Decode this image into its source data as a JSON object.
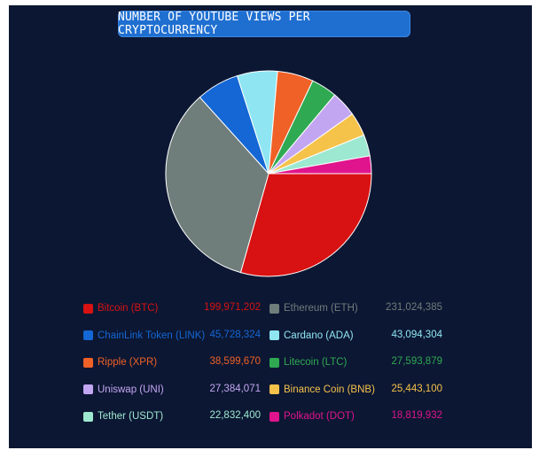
{
  "chart_data": {
    "type": "pie",
    "title": "NUMBER OF YOUTUBE VIEWS PER CRYPTOCURRENCY",
    "slices": [
      {
        "label": "Bitcoin (BTC)",
        "value_text": "199,971,202",
        "value": 199971202,
        "color": "#d81212"
      },
      {
        "label": "Ethereum (ETH)",
        "value_text": "231,024,385",
        "value": 231024385,
        "color": "#6f7d7b"
      },
      {
        "label": "ChainLink Token (LINK)",
        "value_text": "45,728,324",
        "value": 45728324,
        "color": "#1467d4"
      },
      {
        "label": "Cardano (ADA)",
        "value_text": "43,094,304",
        "value": 43094304,
        "color": "#8fe6f2"
      },
      {
        "label": "Ripple (XPR)",
        "value_text": "38,599,670",
        "value": 38599670,
        "color": "#ef6127"
      },
      {
        "label": "Litecoin (LTC)",
        "value_text": "27,593,879",
        "value": 27593879,
        "color": "#2fa952"
      },
      {
        "label": "Uniswap (UNI)",
        "value_text": "27,384,071",
        "value": 27384071,
        "color": "#c3a6f2"
      },
      {
        "label": "Binance Coin (BNB)",
        "value_text": "25,443,100",
        "value": 25443100,
        "color": "#f5c24a"
      },
      {
        "label": "Tether (USDT)",
        "value_text": "22,832,400",
        "value": 22832400,
        "color": "#9de8d0"
      },
      {
        "label": "Polkadot (DOT)",
        "value_text": "18,819,932",
        "value": 18819932,
        "color": "#e0148c"
      }
    ],
    "slice_order": [
      "Bitcoin (BTC)",
      "Ethereum (ETH)",
      "ChainLink Token (LINK)",
      "Cardano (ADA)",
      "Ripple (XPR)",
      "Litecoin (LTC)",
      "Uniswap (UNI)",
      "Binance Coin (BNB)",
      "Tether (USDT)",
      "Polkadot (DOT)"
    ],
    "legend_placement": "bottom",
    "colors": {
      "background": "#0c1733",
      "title_pill": "#1f6fd1",
      "slice_border": "#ffffff"
    }
  }
}
